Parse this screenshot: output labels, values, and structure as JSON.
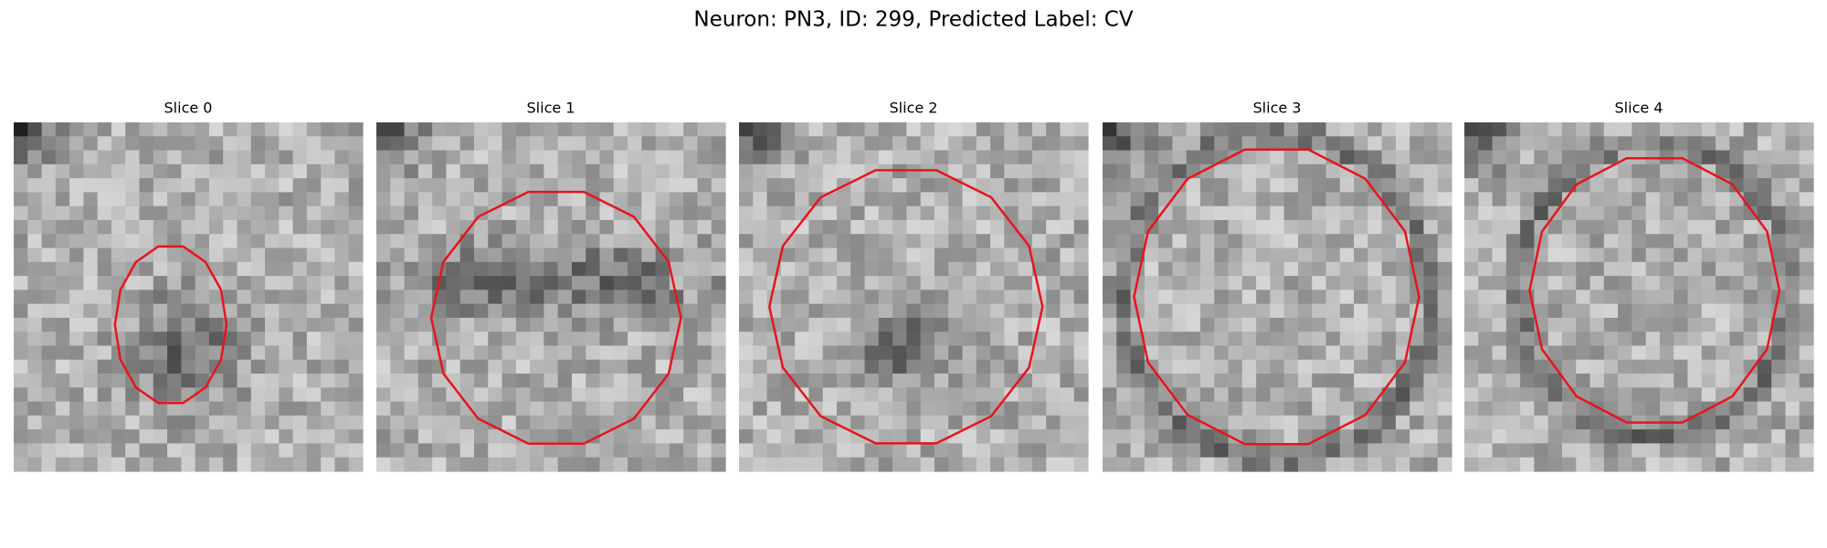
{
  "title": "Neuron: PN3, ID: 299, Predicted Label: CV",
  "panels": [
    {
      "title": "Slice 0"
    },
    {
      "title": "Slice 1"
    },
    {
      "title": "Slice 2"
    },
    {
      "title": "Slice 3"
    },
    {
      "title": "Slice 4"
    }
  ]
}
